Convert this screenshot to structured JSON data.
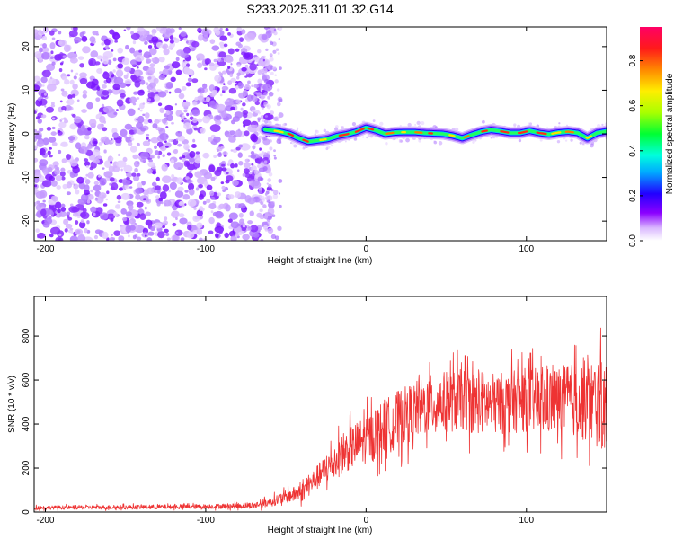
{
  "figure_title": "S233.2025.311.01.32.G14",
  "chart_data": [
    {
      "type": "heatmap",
      "name": "spectrogram",
      "title": "S233.2025.311.01.32.G14",
      "xlabel": "Height of straight line (km)",
      "ylabel": "Frequency (Hz)",
      "xlim": [
        -207,
        150
      ],
      "ylim": [
        -24.5,
        24.5
      ],
      "xticks": [
        -200,
        -100,
        0,
        100
      ],
      "yticks": [
        -20,
        -10,
        0,
        10,
        20
      ],
      "noise_region_x": [
        -207,
        -63
      ],
      "signal_track": {
        "x": [
          -63,
          -55,
          -48,
          -42,
          -36,
          -30,
          -24,
          -18,
          -12,
          -6,
          0,
          6,
          12,
          18,
          24,
          30,
          36,
          42,
          48,
          54,
          60,
          66,
          72,
          78,
          84,
          90,
          96,
          102,
          108,
          114,
          120,
          126,
          132,
          138,
          144,
          150
        ],
        "frequency": [
          1.0,
          0.6,
          0.0,
          -1.0,
          -1.8,
          -1.5,
          -1.2,
          -0.5,
          -0.1,
          0.5,
          1.4,
          0.8,
          0.0,
          0.3,
          0.4,
          0.4,
          0.2,
          0.1,
          0.0,
          -0.4,
          -1.0,
          -0.2,
          0.5,
          0.9,
          0.6,
          0.2,
          0.2,
          0.7,
          0.2,
          -0.1,
          0.3,
          0.5,
          0.2,
          -1.0,
          0.2,
          0.6
        ]
      },
      "colorbar": {
        "label": "Normalized spectral amplitude",
        "range": [
          0.0,
          0.95
        ],
        "ticks": [
          "0.0",
          "0.2",
          "0.4",
          "0.6",
          "0.8"
        ]
      }
    },
    {
      "type": "line",
      "name": "snr",
      "xlabel": "Height of straight line (km)",
      "ylabel": "SNR (10 * v/v)",
      "xlim": [
        -207,
        150
      ],
      "ylim": [
        0,
        980
      ],
      "xticks": [
        -200,
        -100,
        0,
        100
      ],
      "yticks": [
        0,
        200,
        400,
        600,
        800
      ],
      "color": "#ee3333",
      "envelope": {
        "x": [
          -207,
          -150,
          -100,
          -70,
          -60,
          -50,
          -40,
          -30,
          -20,
          -10,
          0,
          10,
          20,
          30,
          40,
          50,
          60,
          70,
          80,
          90,
          100,
          110,
          120,
          130,
          140,
          150
        ],
        "mean": [
          20,
          22,
          25,
          30,
          45,
          70,
          90,
          160,
          230,
          290,
          330,
          380,
          420,
          460,
          490,
          500,
          510,
          500,
          490,
          500,
          510,
          500,
          510,
          510,
          500,
          480
        ],
        "spread": [
          12,
          14,
          15,
          20,
          30,
          40,
          60,
          80,
          120,
          140,
          160,
          180,
          190,
          190,
          190,
          200,
          200,
          210,
          200,
          200,
          210,
          220,
          220,
          240,
          280,
          300
        ]
      }
    }
  ]
}
